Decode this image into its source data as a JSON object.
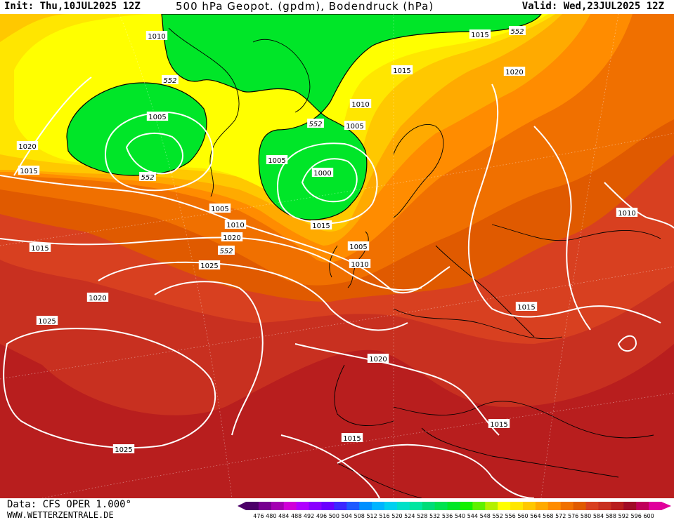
{
  "header": {
    "init": "Init: Thu,10JUL2025 12Z",
    "title": "500 hPa Geopot. (gpdm), Bodendruck (hPa)",
    "valid": "Valid: Wed,23JUL2025 12Z"
  },
  "footer": {
    "source": "Data: CFS OPER 1.000°",
    "url": "WWW.WETTERZENTRALE.DE"
  },
  "legend": {
    "values": [
      "476",
      "480",
      "484",
      "488",
      "492",
      "496",
      "500",
      "504",
      "508",
      "512",
      "516",
      "520",
      "524",
      "528",
      "532",
      "536",
      "540",
      "544",
      "548",
      "552",
      "556",
      "560",
      "564",
      "568",
      "572",
      "576",
      "580",
      "584",
      "588",
      "592",
      "596",
      "600"
    ],
    "colors": [
      "#4b0068",
      "#760090",
      "#a300b2",
      "#d000d8",
      "#b000ff",
      "#8a00ff",
      "#6a00ff",
      "#3c28ff",
      "#1e5aff",
      "#0090ff",
      "#00b4ff",
      "#00d0f0",
      "#00e0c8",
      "#00e6a0",
      "#00dc78",
      "#00e250",
      "#00e628",
      "#14f000",
      "#60f000",
      "#b4f000",
      "#ffff00",
      "#ffe600",
      "#ffc800",
      "#ffaa00",
      "#ff8c00",
      "#f07000",
      "#e05a00",
      "#d84020",
      "#c83020",
      "#b81e1e",
      "#a00c28",
      "#c0005a",
      "#e0009c"
    ]
  },
  "contour_labels": [
    {
      "text": "1010",
      "name": "isobar-label-1010-greenland"
    },
    {
      "text": "552",
      "name": "geopot-label-552-ne"
    },
    {
      "text": "1015",
      "name": "isobar-label-1015-north"
    },
    {
      "text": "552",
      "name": "geopot-label-552-canada"
    },
    {
      "text": "1015",
      "name": "isobar-label-1015-norway"
    },
    {
      "text": "1020",
      "name": "isobar-label-1020-russia"
    },
    {
      "text": "1005",
      "name": "isobar-label-1005-baffin"
    },
    {
      "text": "1010",
      "name": "isobar-label-1010-north-atlantic"
    },
    {
      "text": "552",
      "name": "geopot-label-552-iceland"
    },
    {
      "text": "1005",
      "name": "isobar-label-1005-iceland"
    },
    {
      "text": "1020",
      "name": "isobar-label-1020-west"
    },
    {
      "text": "1015",
      "name": "isobar-label-1015-west"
    },
    {
      "text": "1005",
      "name": "isobar-label-1005-ireland-low"
    },
    {
      "text": "1000",
      "name": "isobar-label-1000-low-center"
    },
    {
      "text": "552",
      "name": "geopot-label-552-labrador"
    },
    {
      "text": "1005",
      "name": "isobar-label-1005-atlantic"
    },
    {
      "text": "1010",
      "name": "isobar-label-1010-atlantic"
    },
    {
      "text": "1015",
      "name": "isobar-label-1015-atlantic-mid"
    },
    {
      "text": "1020",
      "name": "isobar-label-1020-atlantic-mid"
    },
    {
      "text": "552",
      "name": "geopot-label-552-scotland"
    },
    {
      "text": "1015",
      "name": "isobar-label-1015-far-west"
    },
    {
      "text": "1005",
      "name": "isobar-label-1005-britain"
    },
    {
      "text": "1010",
      "name": "isobar-label-1010-britain"
    },
    {
      "text": "1025",
      "name": "isobar-label-1025-azores-north"
    },
    {
      "text": "1010",
      "name": "isobar-label-1010-east"
    },
    {
      "text": "1020",
      "name": "isobar-label-1020-southwest"
    },
    {
      "text": "1015",
      "name": "isobar-label-1015-balkans"
    },
    {
      "text": "1025",
      "name": "isobar-label-1025-azores"
    },
    {
      "text": "1020",
      "name": "isobar-label-1020-biscay"
    },
    {
      "text": "1015",
      "name": "isobar-label-1015-mediterranean"
    },
    {
      "text": "1015",
      "name": "isobar-label-1015-morocco"
    },
    {
      "text": "1025",
      "name": "isobar-label-1025-south"
    }
  ]
}
